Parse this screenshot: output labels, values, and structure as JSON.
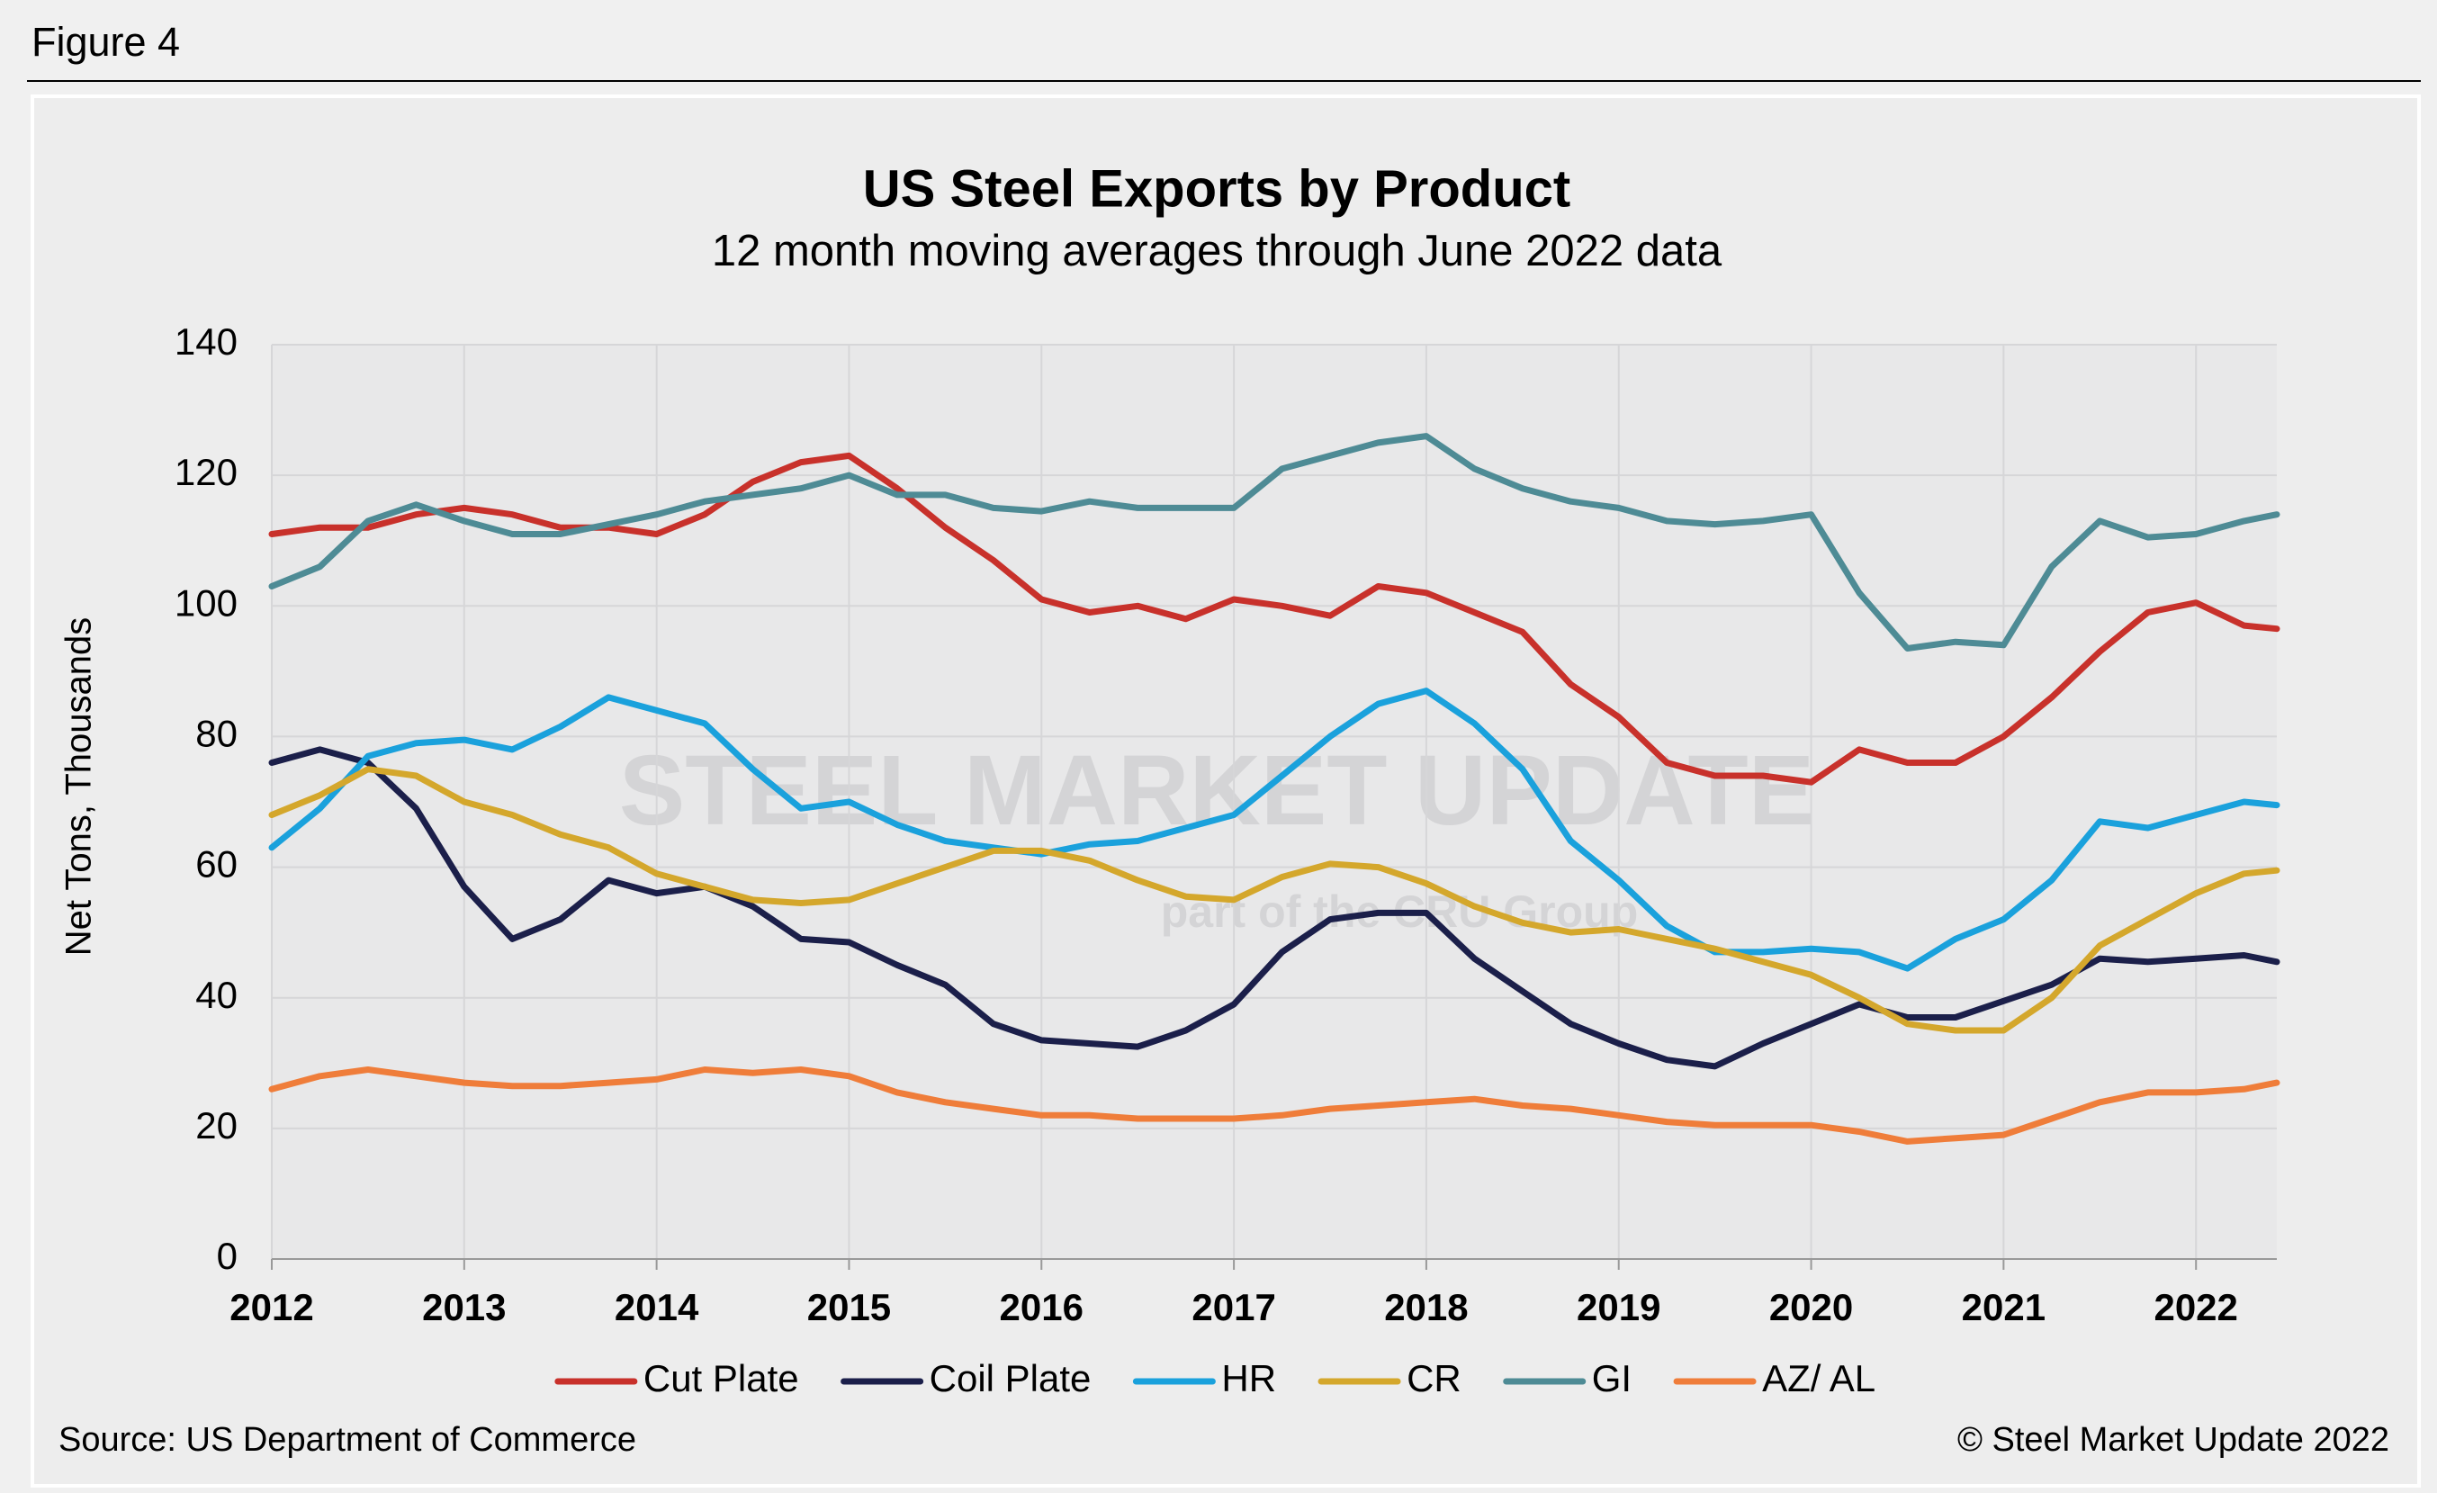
{
  "figure_label": "Figure 4",
  "chart_data": {
    "type": "line",
    "title": "US Steel Exports by Product",
    "subtitle": "12 month moving averages through June 2022 data",
    "y_label": "Net Tons, Thousands",
    "watermark": {
      "text": "STEEL MARKET UPDATE",
      "subtext": "part of the CRU Group"
    },
    "source": "Source: US Department of Commerce",
    "copyright": "© Steel Market Update 2022",
    "grid": true,
    "legend": "bottom",
    "x": [
      2012,
      2012.25,
      2012.5,
      2012.75,
      2013,
      2013.25,
      2013.5,
      2013.75,
      2014,
      2014.25,
      2014.5,
      2014.75,
      2015,
      2015.25,
      2015.5,
      2015.75,
      2016,
      2016.25,
      2016.5,
      2016.75,
      2017,
      2017.25,
      2017.5,
      2017.75,
      2018,
      2018.25,
      2018.5,
      2018.75,
      2019,
      2019.25,
      2019.5,
      2019.75,
      2020,
      2020.25,
      2020.5,
      2020.75,
      2021,
      2021.25,
      2021.5,
      2021.75,
      2022,
      2022.25,
      2022.42
    ],
    "xlim": [
      2012,
      2022.42
    ],
    "xticks": [
      2012,
      2013,
      2014,
      2015,
      2016,
      2017,
      2018,
      2019,
      2020,
      2021,
      2022
    ],
    "ylim": [
      0,
      140
    ],
    "yticks": [
      0,
      20,
      40,
      60,
      80,
      100,
      120,
      140
    ],
    "series": [
      {
        "name": "Cut Plate",
        "color": "#c8312b",
        "values": [
          111,
          112,
          112,
          114,
          115,
          114,
          112,
          112,
          111,
          114,
          119,
          122,
          123,
          118,
          112,
          107,
          101,
          99,
          100,
          98,
          101,
          100,
          98.5,
          103,
          102,
          99,
          96,
          88,
          83,
          76,
          74,
          74,
          73,
          78,
          76,
          76,
          80,
          86,
          93,
          99,
          100.5,
          97,
          96.5
        ]
      },
      {
        "name": "Coil Plate",
        "color": "#1b1f4a",
        "values": [
          76,
          78,
          76,
          69,
          57,
          49,
          52,
          58,
          56,
          57,
          54,
          49,
          48.5,
          45,
          42,
          36,
          33.5,
          33,
          32.5,
          35,
          39,
          47,
          52,
          53,
          53,
          46,
          41,
          36,
          33,
          30.5,
          29.5,
          33,
          36,
          39,
          37,
          37,
          39.5,
          42,
          46,
          45.5,
          46,
          46.5,
          45.5
        ]
      },
      {
        "name": "HR",
        "color": "#1aa1dc",
        "values": [
          63,
          69,
          77,
          79,
          79.5,
          78,
          81.5,
          86,
          84,
          82,
          75,
          69,
          70,
          66.5,
          64,
          63,
          62,
          63.5,
          64,
          66,
          68,
          74,
          80,
          85,
          87,
          82,
          75,
          64,
          58,
          51,
          47,
          47,
          47.5,
          47,
          44.5,
          49,
          52,
          58,
          67,
          66,
          68,
          70,
          69.5
        ]
      },
      {
        "name": "CR",
        "color": "#d4a72c",
        "values": [
          68,
          71,
          75,
          74,
          70,
          68,
          65,
          63,
          59,
          57,
          55,
          54.5,
          55,
          57.5,
          60,
          62.5,
          62.5,
          61,
          58,
          55.5,
          55,
          58.5,
          60.5,
          60,
          57.5,
          54,
          51.5,
          50,
          50.5,
          49,
          47.5,
          45.5,
          43.5,
          40,
          36,
          35,
          35,
          40,
          48,
          52,
          56,
          59,
          59.5
        ]
      },
      {
        "name": "GI",
        "color": "#4e8b95",
        "values": [
          103,
          106,
          113,
          115.5,
          113,
          111,
          111,
          112.5,
          114,
          116,
          117,
          118,
          120,
          117,
          117,
          115,
          114.5,
          116,
          115,
          115,
          115,
          121,
          123,
          125,
          126,
          121,
          118,
          116,
          115,
          113,
          112.5,
          113,
          114,
          102,
          93.5,
          94.5,
          94,
          106,
          113,
          110.5,
          111,
          113,
          114
        ]
      },
      {
        "name": "AZ/ AL",
        "color": "#ef7d3a",
        "values": [
          26,
          28,
          29,
          28,
          27,
          26.5,
          26.5,
          27,
          27.5,
          29,
          28.5,
          29,
          28,
          25.5,
          24,
          23,
          22,
          22,
          21.5,
          21.5,
          21.5,
          22,
          23,
          23.5,
          24,
          24.5,
          23.5,
          23,
          22,
          21,
          20.5,
          20.5,
          20.5,
          19.5,
          18,
          18.5,
          19,
          21.5,
          24,
          25.5,
          25.5,
          26,
          27
        ]
      }
    ]
  }
}
